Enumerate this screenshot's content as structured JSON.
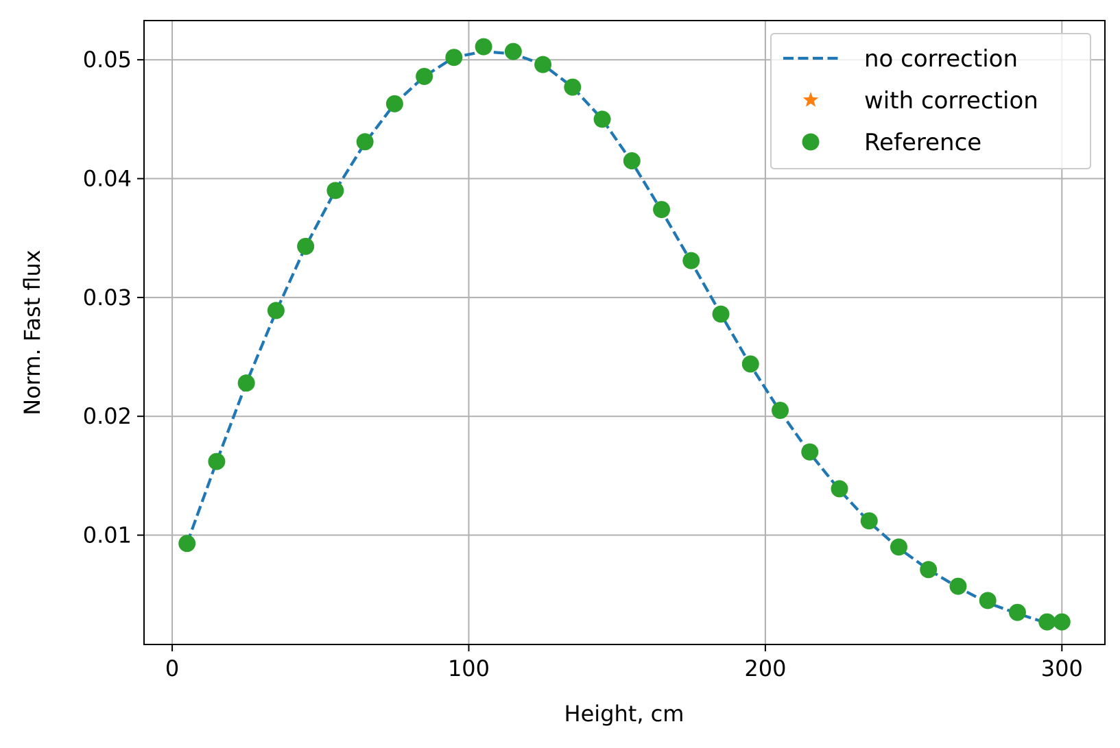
{
  "chart_data": {
    "type": "line",
    "title": "",
    "xlabel": "Height, cm",
    "ylabel": "Norm. Fast flux",
    "xlim": [
      -9.5,
      314.5
    ],
    "ylim": [
      0.0008,
      0.0533
    ],
    "xticks": [
      0,
      100,
      200,
      300
    ],
    "xtick_labels": [
      "0",
      "100",
      "200",
      "300"
    ],
    "yticks": [
      0.01,
      0.02,
      0.03,
      0.04,
      0.05
    ],
    "ytick_labels": [
      "0.01",
      "0.02",
      "0.03",
      "0.04",
      "0.05"
    ],
    "grid": true,
    "legend_position": "top-right",
    "series": [
      {
        "name": "no correction",
        "style": "dashed-line",
        "color": "#1f77b4",
        "x": [
          5,
          15,
          25,
          35,
          45,
          55,
          65,
          75,
          85,
          95,
          105,
          115,
          125,
          135,
          145,
          155,
          165,
          175,
          185,
          195,
          205,
          215,
          225,
          235,
          245,
          255,
          265,
          275,
          285,
          295,
          300
        ],
        "y": [
          0.0093,
          0.0162,
          0.0228,
          0.0288,
          0.0343,
          0.039,
          0.043,
          0.0463,
          0.0486,
          0.0502,
          0.0507,
          0.0505,
          0.0496,
          0.0477,
          0.045,
          0.0414,
          0.0373,
          0.033,
          0.0286,
          0.0243,
          0.0204,
          0.0169,
          0.0138,
          0.0111,
          0.0089,
          0.0071,
          0.0056,
          0.0043,
          0.0034,
          0.0026,
          0.0026
        ]
      },
      {
        "name": "with correction",
        "style": "star-marker",
        "color": "#ff7f0e",
        "x": [],
        "y": []
      },
      {
        "name": "Reference",
        "style": "circle-marker",
        "color": "#2ca02c",
        "x": [
          5,
          15,
          25,
          35,
          45,
          55,
          65,
          75,
          85,
          95,
          105,
          115,
          125,
          135,
          145,
          155,
          165,
          175,
          185,
          195,
          205,
          215,
          225,
          235,
          245,
          255,
          265,
          275,
          285,
          295,
          300
        ],
        "y": [
          0.0093,
          0.0162,
          0.0228,
          0.0289,
          0.0343,
          0.039,
          0.0431,
          0.0463,
          0.0486,
          0.0502,
          0.0511,
          0.0507,
          0.0496,
          0.0477,
          0.045,
          0.0415,
          0.0374,
          0.0331,
          0.0286,
          0.0244,
          0.0205,
          0.017,
          0.0139,
          0.0112,
          0.009,
          0.0071,
          0.0057,
          0.0045,
          0.0035,
          0.0027,
          0.0027
        ]
      }
    ]
  }
}
